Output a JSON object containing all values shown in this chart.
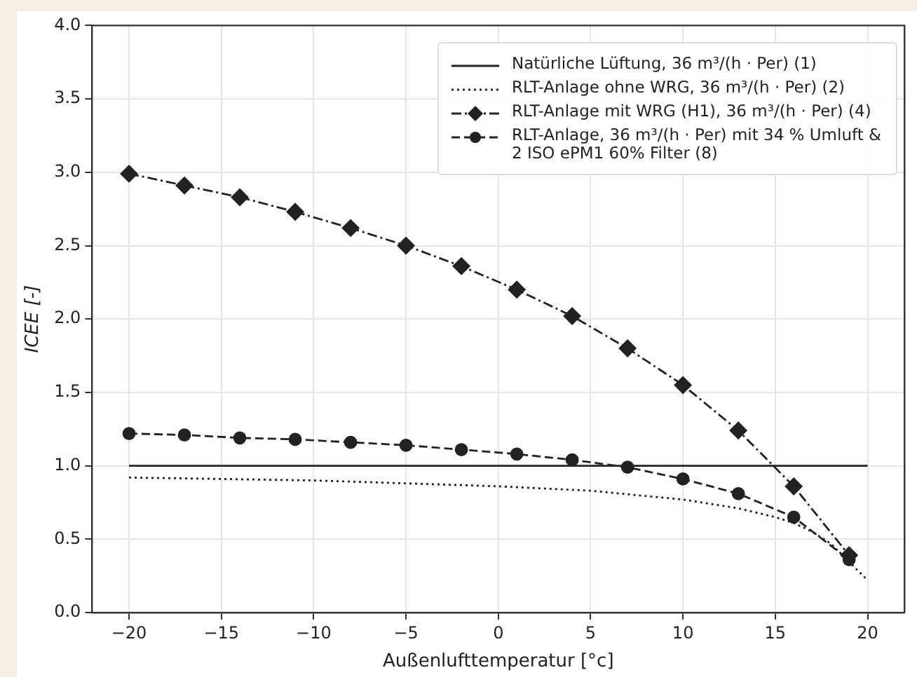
{
  "chart_data": {
    "type": "line",
    "xlabel": "Außenlufttemperatur [°c]",
    "ylabel": "ICEE [-]",
    "xlim": [
      -22,
      22
    ],
    "xticks": [
      -20,
      -15,
      -10,
      -5,
      0,
      5,
      10,
      15,
      20
    ],
    "ylim": [
      0,
      4
    ],
    "yticks": [
      {
        "value": 0,
        "label": "0.0"
      },
      {
        "value": 0.5,
        "label": "0.5"
      },
      {
        "value": 1,
        "label": "1.0"
      },
      {
        "value": 1.5,
        "label": "1.5"
      },
      {
        "value": 2,
        "label": "2.0"
      },
      {
        "value": 2.5,
        "label": "2.5"
      },
      {
        "value": 3,
        "label": "3.0"
      },
      {
        "value": 3.5,
        "label": "3.5"
      },
      {
        "value": 4,
        "label": "4.0"
      }
    ],
    "grid": true,
    "legend": "top right",
    "series": [
      {
        "name": "Natürliche Lüftung, 36 m³/(h · Per) (1)",
        "color": "#222222",
        "line_style": "solid",
        "marker": "none",
        "x": [
          -20,
          20
        ],
        "values": [
          1.0,
          1.0
        ]
      },
      {
        "name": "RLT-Anlage ohne WRG, 36 m³/(h · Per) (2)",
        "color": "#222222",
        "line_style": "dotted",
        "marker": "none",
        "x": [
          -20,
          -15,
          -10,
          -5,
          0,
          5,
          10,
          13,
          15,
          16,
          17,
          18,
          20
        ],
        "values": [
          0.92,
          0.91,
          0.9,
          0.88,
          0.86,
          0.83,
          0.77,
          0.71,
          0.65,
          0.61,
          0.55,
          0.47,
          0.22
        ]
      },
      {
        "name": "RLT-Anlage mit WRG (H1), 36 m³/(h · Per) (4)",
        "color": "#222222",
        "line_style": "dashdot",
        "marker": "diamond",
        "x": [
          -20,
          -17,
          -14,
          -11,
          -8,
          -5,
          -2,
          1,
          4,
          7,
          10,
          13,
          16,
          19
        ],
        "values": [
          2.99,
          2.91,
          2.83,
          2.73,
          2.62,
          2.5,
          2.36,
          2.2,
          2.02,
          1.8,
          1.55,
          1.24,
          0.86,
          0.39
        ]
      },
      {
        "name": "RLT-Anlage, 36 m³/(h · Per) mit 34 % Umluft & 2 ISO ePM1 60% Filter (8)",
        "color": "#222222",
        "line_style": "dashed",
        "marker": "circle",
        "x": [
          -20,
          -17,
          -14,
          -11,
          -8,
          -5,
          -2,
          1,
          4,
          7,
          10,
          13,
          16,
          19
        ],
        "values": [
          1.22,
          1.21,
          1.19,
          1.18,
          1.16,
          1.14,
          1.11,
          1.08,
          1.04,
          0.99,
          0.91,
          0.81,
          0.65,
          0.36
        ]
      }
    ]
  }
}
